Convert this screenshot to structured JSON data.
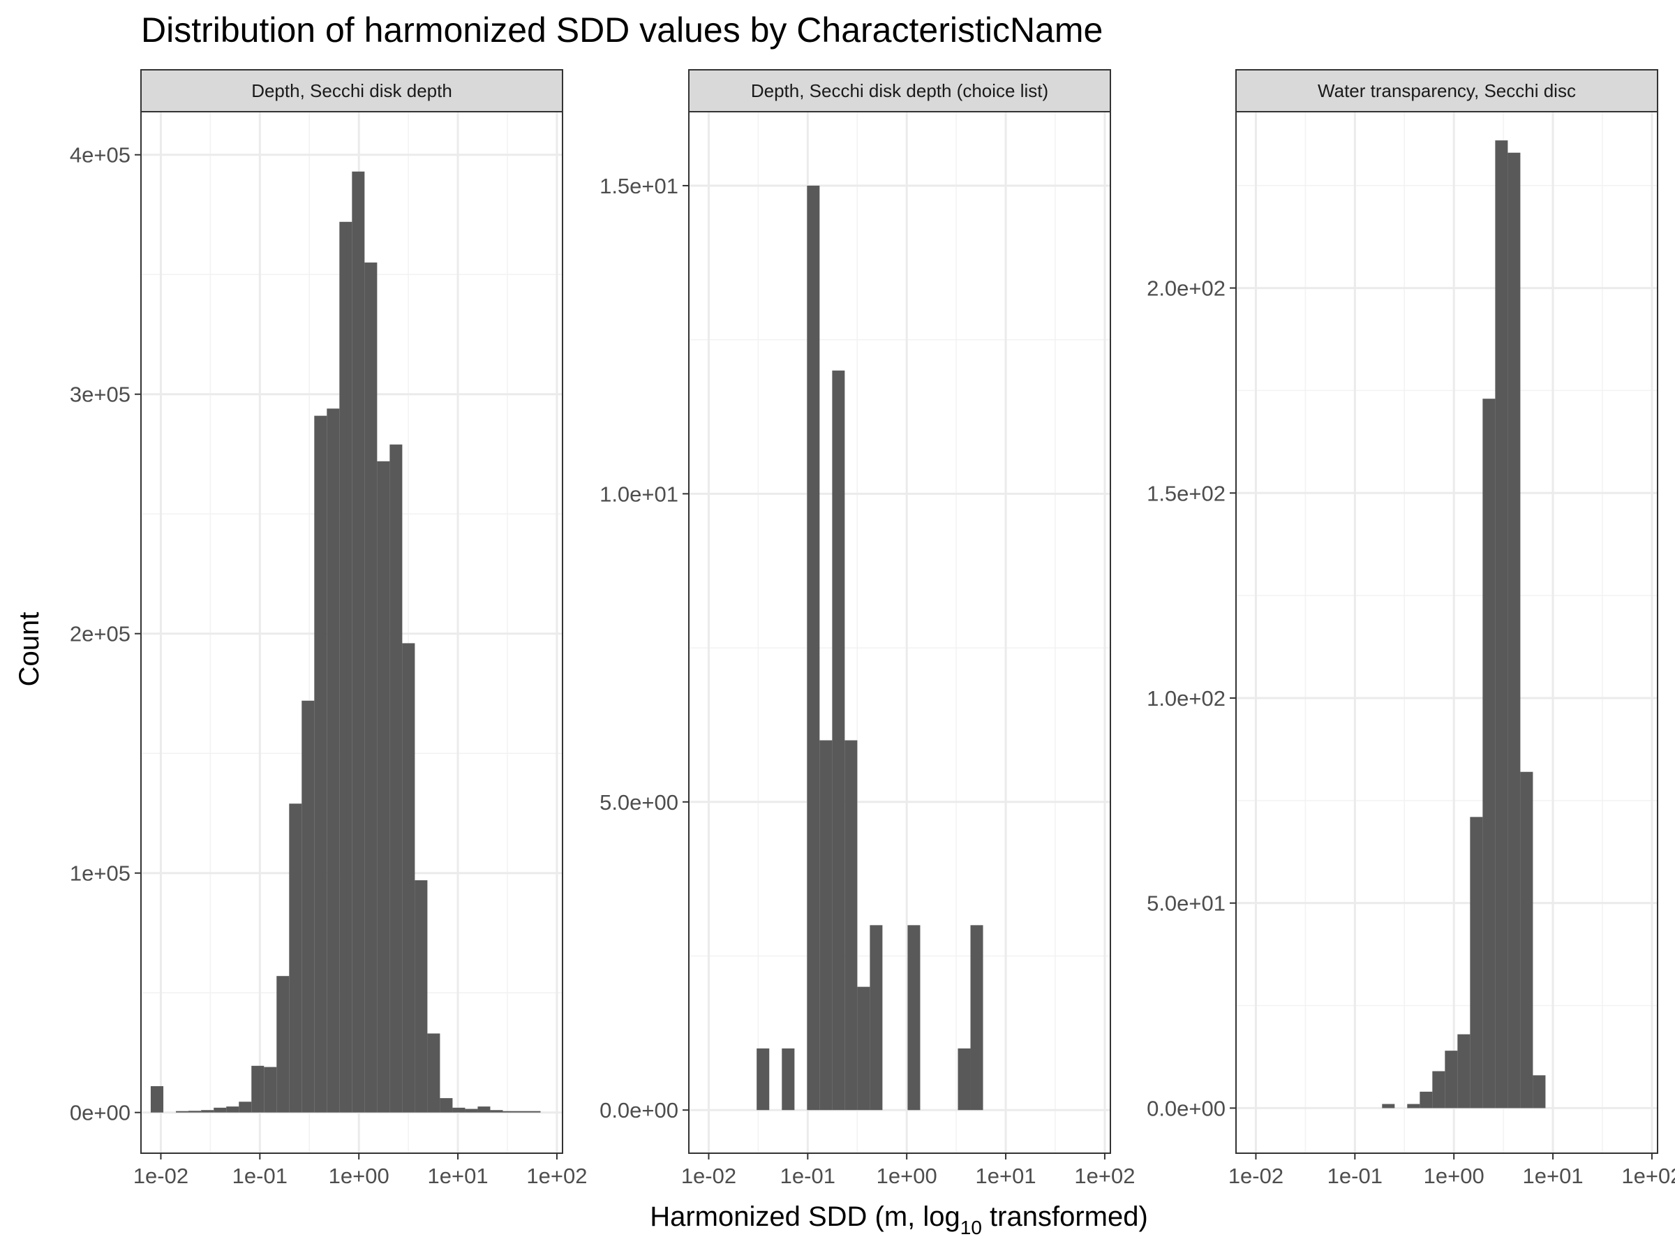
{
  "chart_data": {
    "type": "bar",
    "title": "Distribution of harmonized SDD values by CharacteristicName",
    "xlabel_parts": {
      "prefix": "Harmonized SDD (m,  log",
      "subscript": "10",
      "suffix": "  transformed)"
    },
    "ylabel": "Count",
    "x_scale": "log10",
    "xlim": [
      0.0063,
      114
    ],
    "x_ticks": [
      0.01,
      0.1,
      1,
      10,
      100
    ],
    "x_tick_labels": [
      "1e-02",
      "1e-01",
      "1e+00",
      "1e+01",
      "1e+02"
    ],
    "grid": true,
    "panels": [
      {
        "strip_label": "Depth, Secchi disk depth",
        "ylim": [
          -17000,
          418000
        ],
        "y_ticks": [
          0,
          100000,
          200000,
          300000,
          400000
        ],
        "y_tick_labels": [
          "0e+00",
          "1e+05",
          "2e+05",
          "3e+05",
          "4e+05"
        ],
        "bins": [
          {
            "x0": 0.0079,
            "x1": 0.0106,
            "count": 11000
          },
          {
            "x0": 0.0106,
            "x1": 0.0142,
            "count": 0
          },
          {
            "x0": 0.0142,
            "x1": 0.019,
            "count": 500
          },
          {
            "x0": 0.019,
            "x1": 0.0255,
            "count": 700
          },
          {
            "x0": 0.0255,
            "x1": 0.0342,
            "count": 1000
          },
          {
            "x0": 0.0342,
            "x1": 0.0458,
            "count": 2000
          },
          {
            "x0": 0.0458,
            "x1": 0.0614,
            "count": 2500
          },
          {
            "x0": 0.0614,
            "x1": 0.0822,
            "count": 4500
          },
          {
            "x0": 0.0822,
            "x1": 0.1101,
            "count": 19500
          },
          {
            "x0": 0.1101,
            "x1": 0.1475,
            "count": 19000
          },
          {
            "x0": 0.1475,
            "x1": 0.1976,
            "count": 57000
          },
          {
            "x0": 0.1976,
            "x1": 0.2646,
            "count": 129000
          },
          {
            "x0": 0.2646,
            "x1": 0.3545,
            "count": 172000
          },
          {
            "x0": 0.3545,
            "x1": 0.4749,
            "count": 291000
          },
          {
            "x0": 0.4749,
            "x1": 0.6361,
            "count": 294000
          },
          {
            "x0": 0.6361,
            "x1": 0.8521,
            "count": 372000
          },
          {
            "x0": 0.8521,
            "x1": 1.1414,
            "count": 393000
          },
          {
            "x0": 1.1414,
            "x1": 1.529,
            "count": 355000
          },
          {
            "x0": 1.529,
            "x1": 2.0482,
            "count": 272000
          },
          {
            "x0": 2.0482,
            "x1": 2.7437,
            "count": 279000
          },
          {
            "x0": 2.7437,
            "x1": 3.6753,
            "count": 196000
          },
          {
            "x0": 3.6753,
            "x1": 4.9234,
            "count": 97000
          },
          {
            "x0": 4.9234,
            "x1": 6.5952,
            "count": 33000
          },
          {
            "x0": 6.5952,
            "x1": 8.8347,
            "count": 6000
          },
          {
            "x0": 8.8347,
            "x1": 11.834,
            "count": 2000
          },
          {
            "x0": 11.834,
            "x1": 15.853,
            "count": 1500
          },
          {
            "x0": 15.853,
            "x1": 21.236,
            "count": 2500
          },
          {
            "x0": 21.236,
            "x1": 28.447,
            "count": 1000
          },
          {
            "x0": 28.447,
            "x1": 38.106,
            "count": 300
          },
          {
            "x0": 38.106,
            "x1": 51.045,
            "count": 300
          },
          {
            "x0": 51.045,
            "x1": 68.378,
            "count": 200
          }
        ]
      },
      {
        "strip_label": "Depth, Secchi disk depth (choice list)",
        "ylim": [
          -0.7,
          16.2
        ],
        "y_ticks": [
          0,
          5,
          10,
          15
        ],
        "y_tick_labels": [
          "0.0e+00",
          "5.0e+00",
          "1.0e+01",
          "1.5e+01"
        ],
        "bins": [
          {
            "x0": 0.0305,
            "x1": 0.0409,
            "count": 1
          },
          {
            "x0": 0.0548,
            "x1": 0.0735,
            "count": 1
          },
          {
            "x0": 0.0984,
            "x1": 0.1318,
            "count": 15
          },
          {
            "x0": 0.1318,
            "x1": 0.1766,
            "count": 6
          },
          {
            "x0": 0.1766,
            "x1": 0.2365,
            "count": 12
          },
          {
            "x0": 0.2365,
            "x1": 0.3168,
            "count": 6
          },
          {
            "x0": 0.3168,
            "x1": 0.4244,
            "count": 2
          },
          {
            "x0": 0.4244,
            "x1": 0.5685,
            "count": 3
          },
          {
            "x0": 1.0208,
            "x1": 1.3674,
            "count": 3
          },
          {
            "x0": 3.2867,
            "x1": 4.4027,
            "count": 1
          },
          {
            "x0": 4.4027,
            "x1": 5.8976,
            "count": 3
          }
        ]
      },
      {
        "strip_label": "Water transparency, Secchi disc",
        "ylim": [
          -11,
          243
        ],
        "y_ticks": [
          0,
          50,
          100,
          150,
          200
        ],
        "y_tick_labels": [
          "0.0e+00",
          "5.0e+01",
          "1.0e+02",
          "1.5e+02",
          "2.0e+02"
        ],
        "bins": [
          {
            "x0": 0.1882,
            "x1": 0.2521,
            "count": 1
          },
          {
            "x0": 0.3377,
            "x1": 0.4524,
            "count": 1
          },
          {
            "x0": 0.4524,
            "x1": 0.6059,
            "count": 4
          },
          {
            "x0": 0.6059,
            "x1": 0.8116,
            "count": 9
          },
          {
            "x0": 0.8116,
            "x1": 1.0872,
            "count": 14
          },
          {
            "x0": 1.0872,
            "x1": 1.4563,
            "count": 18
          },
          {
            "x0": 1.4563,
            "x1": 1.9508,
            "count": 71
          },
          {
            "x0": 1.9508,
            "x1": 2.6131,
            "count": 173
          },
          {
            "x0": 2.6131,
            "x1": 3.5004,
            "count": 236
          },
          {
            "x0": 3.5004,
            "x1": 4.6889,
            "count": 233
          },
          {
            "x0": 4.6889,
            "x1": 6.281,
            "count": 82
          },
          {
            "x0": 6.281,
            "x1": 8.4136,
            "count": 8
          }
        ]
      }
    ]
  }
}
